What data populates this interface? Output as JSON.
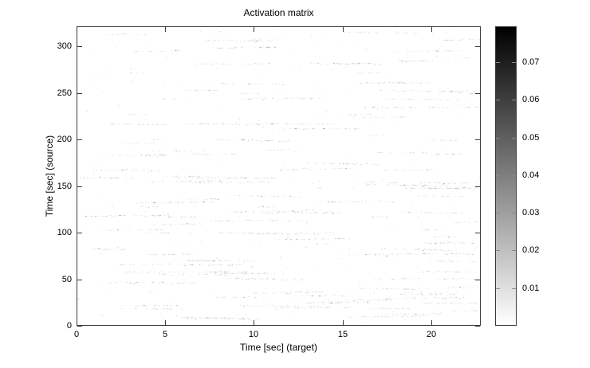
{
  "figure": {
    "background": "#ffffff",
    "axis_color": "#3a3a3a",
    "text_color": "#000000"
  },
  "chart_data": {
    "type": "heatmap",
    "title": "Activation matrix",
    "xlabel": "Time [sec] (target)",
    "ylabel": "Time [sec] (source)",
    "xlim": [
      0,
      22.8
    ],
    "ylim": [
      0,
      321.6
    ],
    "xticks": [
      0,
      5,
      10,
      15,
      20
    ],
    "xtick_labels": [
      "0",
      "5",
      "10",
      "15",
      "20"
    ],
    "yticks": [
      0,
      50,
      100,
      150,
      200,
      250,
      300
    ],
    "ytick_labels": [
      "0",
      "50",
      "100",
      "150",
      "200",
      "250",
      "300"
    ],
    "grid": false,
    "legend": "none",
    "colorbar": {
      "position": "right",
      "vmin": 0,
      "vmax": 0.0795,
      "ticks": [
        0.01,
        0.02,
        0.03,
        0.04,
        0.05,
        0.06,
        0.07
      ],
      "tick_labels": [
        "0.01",
        "0.02",
        "0.03",
        "0.04",
        "0.05",
        "0.06",
        "0.07"
      ],
      "color_low": "#ffffff",
      "color_high": "#000000"
    },
    "values_description": "Sparse activation matrix: nearly all cells are ~0 (white). Non-zero activations are very small (well below 0.01) and appear as faint light-gray horizontal dotted streaks scattered over the whole time range; no dark (high-value) activations are visible in the matrix itself.",
    "streak_rows_sec": [
      316,
      313,
      308,
      300,
      296,
      288,
      285,
      282,
      272,
      262,
      253,
      250,
      244,
      236,
      228,
      225,
      218,
      212,
      205,
      200,
      196,
      190,
      187,
      185,
      183,
      175,
      168,
      160,
      155,
      152,
      148,
      140,
      137,
      133,
      128,
      122,
      118,
      112,
      108,
      103,
      100,
      96,
      92,
      88,
      82,
      77,
      75,
      70,
      65,
      58,
      55,
      50,
      46,
      40,
      35,
      33,
      30,
      27,
      24,
      21,
      18,
      15,
      12,
      8
    ],
    "render_hints": {
      "seed": 1234,
      "clusters_per_row_min": 1,
      "clusters_per_row_max": 4,
      "isolated_specks": 260,
      "speck_gray_min": 160,
      "speck_gray_max": 238
    }
  }
}
